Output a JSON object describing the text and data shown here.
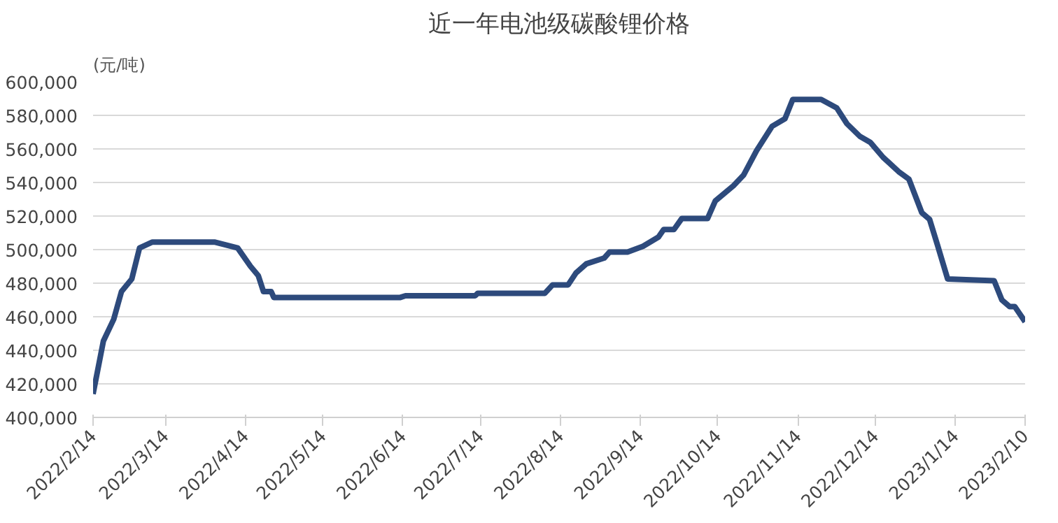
{
  "chart_data": {
    "type": "line",
    "title": "近一年电池级碳酸锂价格",
    "ylabel": "(元/吨)",
    "x": [
      "2022-02-14",
      "2022-02-18",
      "2022-02-22",
      "2022-02-25",
      "2022-03-01",
      "2022-03-04",
      "2022-03-09",
      "2022-04-02",
      "2022-04-11",
      "2022-04-16",
      "2022-04-19",
      "2022-04-21",
      "2022-04-24",
      "2022-04-25",
      "2022-06-13",
      "2022-06-15",
      "2022-07-12",
      "2022-07-13",
      "2022-08-02",
      "2022-08-08",
      "2022-08-11",
      "2022-08-17",
      "2022-08-20",
      "2022-08-24",
      "2022-08-31",
      "2022-09-02",
      "2022-09-09",
      "2022-09-15",
      "2022-09-21",
      "2022-09-23",
      "2022-09-27",
      "2022-09-30",
      "2022-10-10",
      "2022-10-13",
      "2022-10-20",
      "2022-10-24",
      "2022-10-29",
      "2022-11-04",
      "2022-11-09",
      "2022-11-12",
      "2022-11-23",
      "2022-11-29",
      "2022-12-03",
      "2022-12-08",
      "2022-12-12",
      "2022-12-17",
      "2022-12-23",
      "2022-12-27",
      "2023-01-01",
      "2023-01-04",
      "2023-01-07",
      "2023-01-11",
      "2023-01-29",
      "2023-02-01",
      "2023-02-04",
      "2023-02-06",
      "2023-02-10"
    ],
    "series": [
      {
        "color": "#2d4a7c",
        "values": [
          414000,
          445500,
          458500,
          475000,
          482500,
          501000,
          504500,
          504500,
          501000,
          490000,
          484500,
          475000,
          475000,
          471500,
          471500,
          472500,
          472500,
          474000,
          474000,
          474000,
          479000,
          479000,
          486000,
          491500,
          495000,
          498500,
          498500,
          502000,
          507500,
          512000,
          512000,
          518500,
          518500,
          529000,
          538000,
          544500,
          559000,
          573500,
          578000,
          589500,
          589500,
          584500,
          575000,
          567500,
          564000,
          555000,
          546500,
          542000,
          522000,
          518000,
          503000,
          482500,
          481500,
          470000,
          466000,
          466000,
          457000
        ]
      }
    ],
    "xlim": [
      "2022-02-14",
      "2023-02-10"
    ],
    "xticks": [
      {
        "value": "2022-02-14",
        "label": "2022/2/14"
      },
      {
        "value": "2022-03-14",
        "label": "2022/3/14"
      },
      {
        "value": "2022-04-14",
        "label": "2022/4/14"
      },
      {
        "value": "2022-05-14",
        "label": "2022/5/14"
      },
      {
        "value": "2022-06-14",
        "label": "2022/6/14"
      },
      {
        "value": "2022-07-14",
        "label": "2022/7/14"
      },
      {
        "value": "2022-08-14",
        "label": "2022/8/14"
      },
      {
        "value": "2022-09-14",
        "label": "2022/9/14"
      },
      {
        "value": "2022-10-14",
        "label": "2022/10/14"
      },
      {
        "value": "2022-11-14",
        "label": "2022/11/14"
      },
      {
        "value": "2022-12-14",
        "label": "2022/12/14"
      },
      {
        "value": "2023-01-14",
        "label": "2023/1/14"
      },
      {
        "value": "2023-02-10",
        "label": "2023/2/10"
      }
    ],
    "ylim": [
      400000,
      600000
    ],
    "yticks": [
      {
        "value": 400000,
        "label": "400,000"
      },
      {
        "value": 420000,
        "label": "420,000"
      },
      {
        "value": 440000,
        "label": "440,000"
      },
      {
        "value": 460000,
        "label": "460,000"
      },
      {
        "value": 480000,
        "label": "480,000"
      },
      {
        "value": 500000,
        "label": "500,000"
      },
      {
        "value": 520000,
        "label": "520,000"
      },
      {
        "value": 540000,
        "label": "540,000"
      },
      {
        "value": 560000,
        "label": "560,000"
      },
      {
        "value": 580000,
        "label": "580,000"
      },
      {
        "value": 600000,
        "label": "600,000"
      }
    ],
    "grid": "y",
    "marker": "none",
    "line_style": "solid"
  }
}
